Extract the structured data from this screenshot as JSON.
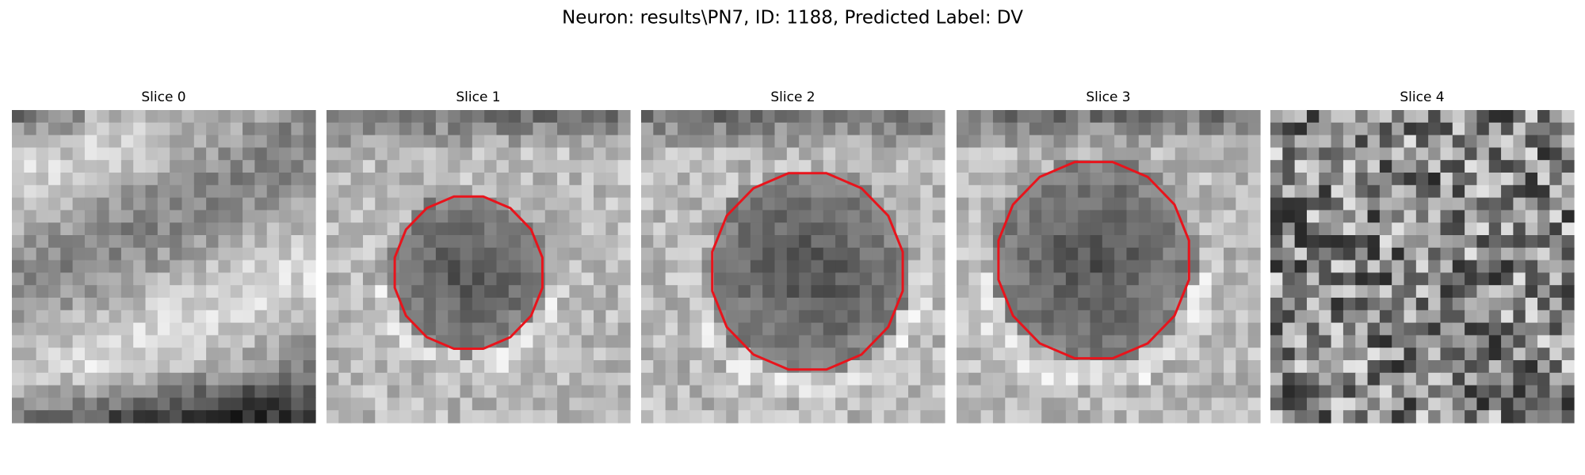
{
  "title": "Neuron: results\\PN7, ID: 1188, Predicted Label: DV",
  "panels": [
    {
      "title": "Slice 0"
    },
    {
      "title": "Slice 1"
    },
    {
      "title": "Slice 2"
    },
    {
      "title": "Slice 3"
    },
    {
      "title": "Slice 4"
    }
  ]
}
